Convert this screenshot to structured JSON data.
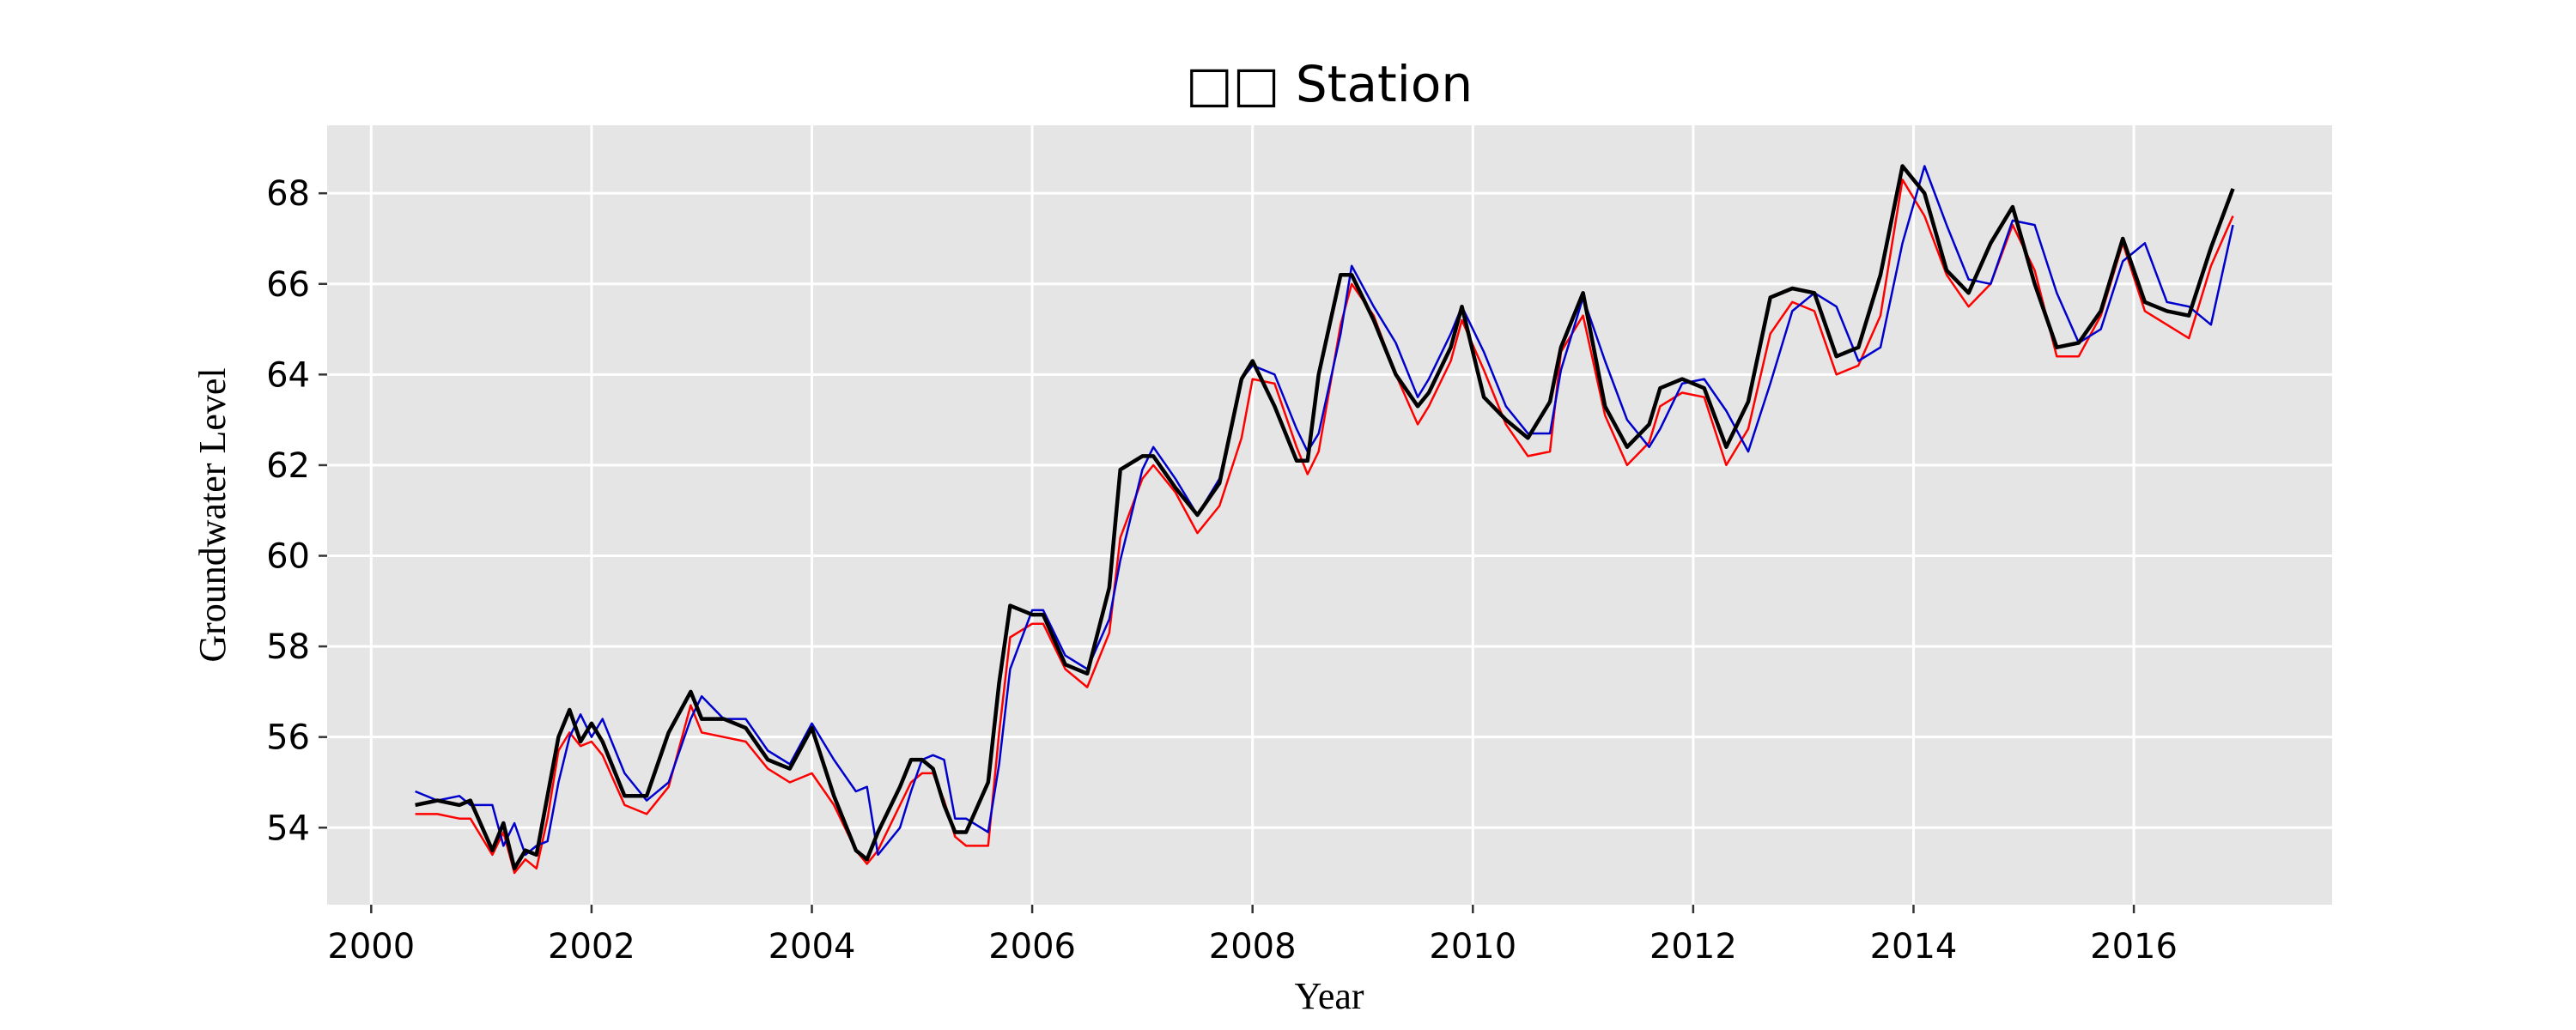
{
  "chart_data": {
    "type": "line",
    "title": "□□ Station",
    "xlabel": "Year",
    "ylabel": "Groundwater Level",
    "xlim": [
      1999.6,
      2017.8
    ],
    "ylim": [
      52.3,
      69.5
    ],
    "xticks": [
      2000,
      2002,
      2004,
      2006,
      2008,
      2010,
      2012,
      2014,
      2016
    ],
    "yticks": [
      54,
      56,
      58,
      60,
      62,
      64,
      66,
      68
    ],
    "grid": true,
    "legend": "none",
    "background": "#e5e5e5",
    "series": [
      {
        "color": "#ff0000",
        "x": [
          2000.4,
          2000.6,
          2000.8,
          2000.9,
          2001.1,
          2001.2,
          2001.3,
          2001.4,
          2001.5,
          2001.6,
          2001.7,
          2001.8,
          2001.9,
          2002.0,
          2002.1,
          2002.3,
          2002.5,
          2002.7,
          2002.9,
          2003.0,
          2003.2,
          2003.4,
          2003.6,
          2003.8,
          2004.0,
          2004.2,
          2004.4,
          2004.5,
          2004.6,
          2004.8,
          2004.9,
          2005.0,
          2005.1,
          2005.2,
          2005.3,
          2005.4,
          2005.6,
          2005.7,
          2005.8,
          2006.0,
          2006.1,
          2006.3,
          2006.5,
          2006.7,
          2006.8,
          2007.0,
          2007.1,
          2007.3,
          2007.5,
          2007.7,
          2007.9,
          2008.0,
          2008.2,
          2008.4,
          2008.5,
          2008.6,
          2008.8,
          2008.9,
          2009.1,
          2009.3,
          2009.5,
          2009.6,
          2009.8,
          2009.9,
          2010.1,
          2010.3,
          2010.5,
          2010.7,
          2010.8,
          2011.0,
          2011.2,
          2011.4,
          2011.6,
          2011.7,
          2011.9,
          2012.1,
          2012.3,
          2012.5,
          2012.7,
          2012.9,
          2013.1,
          2013.3,
          2013.5,
          2013.7,
          2013.9,
          2014.1,
          2014.3,
          2014.5,
          2014.7,
          2014.9,
          2015.1,
          2015.3,
          2015.5,
          2015.7,
          2015.9,
          2016.1,
          2016.3,
          2016.5,
          2016.7,
          2016.9
        ],
        "y": [
          54.3,
          54.3,
          54.2,
          54.2,
          53.4,
          53.9,
          53.0,
          53.3,
          53.1,
          54.2,
          55.7,
          56.1,
          55.8,
          55.9,
          55.6,
          54.5,
          54.3,
          54.9,
          56.7,
          56.1,
          56.0,
          55.9,
          55.3,
          55.0,
          55.2,
          54.5,
          53.5,
          53.2,
          53.5,
          54.5,
          55.0,
          55.2,
          55.2,
          54.6,
          53.8,
          53.6,
          53.6,
          56.1,
          58.2,
          58.5,
          58.5,
          57.5,
          57.1,
          58.3,
          60.4,
          61.7,
          62.0,
          61.4,
          60.5,
          61.1,
          62.6,
          63.9,
          63.8,
          62.4,
          61.8,
          62.3,
          65.1,
          66.0,
          65.3,
          64.0,
          62.9,
          63.3,
          64.3,
          65.2,
          64.1,
          62.9,
          62.2,
          62.3,
          64.5,
          65.3,
          63.1,
          62.0,
          62.5,
          63.3,
          63.6,
          63.5,
          62.0,
          62.8,
          64.9,
          65.6,
          65.4,
          64.0,
          64.2,
          65.3,
          68.3,
          67.5,
          66.2,
          65.5,
          66.0,
          67.3,
          66.3,
          64.4,
          64.4,
          65.3,
          66.9,
          65.4,
          65.1,
          64.8,
          66.4,
          67.5
        ]
      },
      {
        "color": "#0000cc",
        "x": [
          2000.4,
          2000.6,
          2000.8,
          2000.9,
          2001.1,
          2001.2,
          2001.3,
          2001.4,
          2001.5,
          2001.6,
          2001.7,
          2001.8,
          2001.9,
          2002.0,
          2002.1,
          2002.3,
          2002.5,
          2002.7,
          2002.9,
          2003.0,
          2003.2,
          2003.4,
          2003.6,
          2003.8,
          2004.0,
          2004.2,
          2004.4,
          2004.5,
          2004.6,
          2004.8,
          2004.9,
          2005.0,
          2005.1,
          2005.2,
          2005.3,
          2005.4,
          2005.6,
          2005.7,
          2005.8,
          2006.0,
          2006.1,
          2006.3,
          2006.5,
          2006.7,
          2006.8,
          2007.0,
          2007.1,
          2007.3,
          2007.5,
          2007.7,
          2007.9,
          2008.0,
          2008.2,
          2008.4,
          2008.5,
          2008.6,
          2008.8,
          2008.9,
          2009.1,
          2009.3,
          2009.5,
          2009.6,
          2009.8,
          2009.9,
          2010.1,
          2010.3,
          2010.5,
          2010.7,
          2010.8,
          2011.0,
          2011.2,
          2011.4,
          2011.6,
          2011.7,
          2011.9,
          2012.1,
          2012.3,
          2012.5,
          2012.7,
          2012.9,
          2013.1,
          2013.3,
          2013.5,
          2013.7,
          2013.9,
          2014.1,
          2014.3,
          2014.5,
          2014.7,
          2014.9,
          2015.1,
          2015.3,
          2015.5,
          2015.7,
          2015.9,
          2016.1,
          2016.3,
          2016.5,
          2016.7,
          2016.9
        ],
        "y": [
          54.8,
          54.6,
          54.7,
          54.5,
          54.5,
          53.6,
          54.1,
          53.4,
          53.6,
          53.7,
          55.0,
          56.0,
          56.5,
          56.0,
          56.4,
          55.2,
          54.6,
          55.0,
          56.4,
          56.9,
          56.4,
          56.4,
          55.7,
          55.4,
          56.3,
          55.5,
          54.8,
          54.9,
          53.4,
          54.0,
          54.8,
          55.5,
          55.6,
          55.5,
          54.2,
          54.2,
          53.9,
          55.4,
          57.5,
          58.8,
          58.8,
          57.8,
          57.5,
          58.6,
          59.9,
          61.9,
          62.4,
          61.7,
          60.9,
          61.7,
          63.9,
          64.2,
          64.0,
          62.8,
          62.3,
          62.7,
          64.9,
          66.4,
          65.5,
          64.7,
          63.5,
          63.9,
          64.9,
          65.5,
          64.5,
          63.3,
          62.7,
          62.7,
          64.1,
          65.7,
          64.3,
          63.0,
          62.4,
          62.8,
          63.8,
          63.9,
          63.2,
          62.3,
          63.8,
          65.4,
          65.8,
          65.5,
          64.3,
          64.6,
          66.9,
          68.6,
          67.3,
          66.1,
          66.0,
          67.4,
          67.3,
          65.8,
          64.7,
          65.0,
          66.5,
          66.9,
          65.6,
          65.5,
          65.1,
          67.3
        ]
      },
      {
        "color": "#000000",
        "x": [
          2000.4,
          2000.6,
          2000.8,
          2000.9,
          2001.1,
          2001.2,
          2001.3,
          2001.4,
          2001.5,
          2001.6,
          2001.7,
          2001.8,
          2001.9,
          2002.0,
          2002.1,
          2002.3,
          2002.5,
          2002.7,
          2002.9,
          2003.0,
          2003.2,
          2003.4,
          2003.6,
          2003.8,
          2004.0,
          2004.2,
          2004.4,
          2004.5,
          2004.6,
          2004.8,
          2004.9,
          2005.0,
          2005.1,
          2005.2,
          2005.3,
          2005.4,
          2005.6,
          2005.7,
          2005.8,
          2006.0,
          2006.1,
          2006.3,
          2006.5,
          2006.7,
          2006.8,
          2007.0,
          2007.1,
          2007.3,
          2007.5,
          2007.7,
          2007.9,
          2008.0,
          2008.2,
          2008.4,
          2008.5,
          2008.6,
          2008.8,
          2008.9,
          2009.1,
          2009.3,
          2009.5,
          2009.6,
          2009.8,
          2009.9,
          2010.1,
          2010.3,
          2010.5,
          2010.7,
          2010.8,
          2011.0,
          2011.2,
          2011.4,
          2011.6,
          2011.7,
          2011.9,
          2012.1,
          2012.3,
          2012.5,
          2012.7,
          2012.9,
          2013.1,
          2013.3,
          2013.5,
          2013.7,
          2013.9,
          2014.1,
          2014.3,
          2014.5,
          2014.7,
          2014.9,
          2015.1,
          2015.3,
          2015.5,
          2015.7,
          2015.9,
          2016.1,
          2016.3,
          2016.5,
          2016.7,
          2016.9
        ],
        "y": [
          54.5,
          54.6,
          54.5,
          54.6,
          53.5,
          54.1,
          53.1,
          53.5,
          53.4,
          54.7,
          56.0,
          56.6,
          55.9,
          56.3,
          55.9,
          54.7,
          54.7,
          56.1,
          57.0,
          56.4,
          56.4,
          56.2,
          55.5,
          55.3,
          56.2,
          54.7,
          53.5,
          53.3,
          53.9,
          54.9,
          55.5,
          55.5,
          55.3,
          54.5,
          53.9,
          53.9,
          55.0,
          57.2,
          58.9,
          58.7,
          58.7,
          57.6,
          57.4,
          59.3,
          61.9,
          62.2,
          62.2,
          61.5,
          60.9,
          61.6,
          63.9,
          64.3,
          63.3,
          62.1,
          62.1,
          64.0,
          66.2,
          66.2,
          65.2,
          64.0,
          63.3,
          63.6,
          64.6,
          65.5,
          63.5,
          63.0,
          62.6,
          63.4,
          64.6,
          65.8,
          63.3,
          62.4,
          62.9,
          63.7,
          63.9,
          63.7,
          62.4,
          63.4,
          65.7,
          65.9,
          65.8,
          64.4,
          64.6,
          66.2,
          68.6,
          68.0,
          66.3,
          65.8,
          66.9,
          67.7,
          66.0,
          64.6,
          64.7,
          65.4,
          67.0,
          65.6,
          65.4,
          65.3,
          66.8,
          68.1
        ]
      }
    ]
  }
}
